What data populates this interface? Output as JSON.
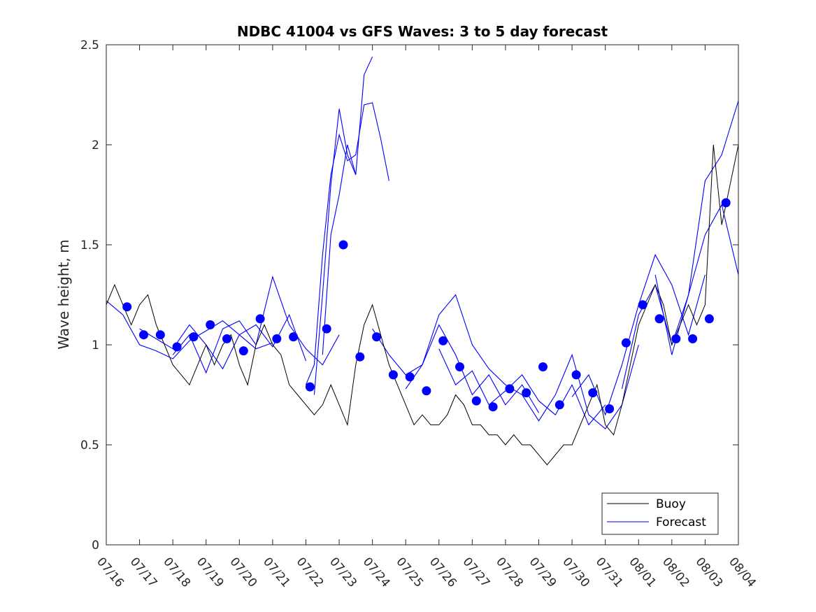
{
  "chart_data": {
    "type": "line",
    "title": "NDBC 41004 vs GFS Waves: 3 to 5 day forecast",
    "xlabel": "",
    "ylabel": "Wave height, m",
    "x_range": [
      "07/16",
      "08/04"
    ],
    "x_ticks": [
      "07/16",
      "07/17",
      "07/18",
      "07/19",
      "07/20",
      "07/21",
      "07/22",
      "07/23",
      "07/24",
      "07/25",
      "07/26",
      "07/27",
      "07/28",
      "07/29",
      "07/30",
      "07/31",
      "08/01",
      "08/02",
      "08/03",
      "08/04"
    ],
    "ylim": [
      0,
      2.5
    ],
    "y_ticks": [
      0,
      0.5,
      1,
      1.5,
      2,
      2.5
    ],
    "y_tick_labels": [
      "0",
      "0.5",
      "1",
      "1.5",
      "2",
      "2.5"
    ],
    "grid": false,
    "legend_position": "bottom-right",
    "colors": {
      "buoy": "#000000",
      "forecast": "#0000ff",
      "axes": "#262626"
    },
    "series": [
      {
        "name": "Buoy",
        "style": "line",
        "color": "#000000",
        "x": [
          "07/16",
          "07/16 06:00",
          "07/16 12:00",
          "07/16 18:00",
          "07/17",
          "07/17 06:00",
          "07/17 12:00",
          "07/17 18:00",
          "07/18",
          "07/18 06:00",
          "07/18 12:00",
          "07/18 18:00",
          "07/19",
          "07/19 06:00",
          "07/19 12:00",
          "07/19 18:00",
          "07/20",
          "07/20 06:00",
          "07/20 12:00",
          "07/20 18:00",
          "07/21",
          "07/21 06:00",
          "07/21 12:00",
          "07/21 18:00",
          "07/22",
          "07/22 06:00",
          "07/22 12:00",
          "07/22 18:00",
          "07/23",
          "07/23 06:00",
          "07/23 12:00",
          "07/23 18:00",
          "07/24",
          "07/24 06:00",
          "07/24 12:00",
          "07/24 18:00",
          "07/25",
          "07/25 06:00",
          "07/25 12:00",
          "07/25 18:00",
          "07/26",
          "07/26 06:00",
          "07/26 12:00",
          "07/26 18:00",
          "07/27",
          "07/27 06:00",
          "07/27 12:00",
          "07/27 18:00",
          "07/28",
          "07/28 06:00",
          "07/28 12:00",
          "07/28 18:00",
          "07/29",
          "07/29 06:00",
          "07/29 12:00",
          "07/29 18:00",
          "07/30",
          "07/30 06:00",
          "07/30 12:00",
          "07/30 18:00",
          "07/31",
          "07/31 06:00",
          "07/31 12:00",
          "07/31 18:00",
          "08/01",
          "08/01 06:00",
          "08/01 12:00",
          "08/01 18:00",
          "08/02",
          "08/02 06:00",
          "08/02 12:00",
          "08/02 18:00",
          "08/03",
          "08/03 06:00",
          "08/03 12:00",
          "08/03 18:00",
          "08/04"
        ],
        "values": [
          1.2,
          1.3,
          1.2,
          1.1,
          1.2,
          1.25,
          1.1,
          1.0,
          0.9,
          0.85,
          0.8,
          0.9,
          1.0,
          0.9,
          1.0,
          1.05,
          0.9,
          0.8,
          1.0,
          1.1,
          1.0,
          0.95,
          0.8,
          0.75,
          0.7,
          0.65,
          0.7,
          0.8,
          0.7,
          0.6,
          0.9,
          1.1,
          1.2,
          1.05,
          0.9,
          0.8,
          0.7,
          0.6,
          0.65,
          0.6,
          0.6,
          0.65,
          0.75,
          0.7,
          0.6,
          0.6,
          0.55,
          0.55,
          0.5,
          0.55,
          0.5,
          0.5,
          0.45,
          0.4,
          0.45,
          0.5,
          0.5,
          0.6,
          0.7,
          0.8,
          0.6,
          0.55,
          0.7,
          0.9,
          1.1,
          1.2,
          1.3,
          1.2,
          1.0,
          1.1,
          1.2,
          1.1,
          1.2,
          2.0,
          1.6,
          1.8,
          2.0
        ]
      },
      {
        "name": "Forecast",
        "style": "markers",
        "color": "#0000ff",
        "x": [
          "07/16 15:00",
          "07/17 03:00",
          "07/17 15:00",
          "07/18 03:00",
          "07/18 15:00",
          "07/19 03:00",
          "07/19 15:00",
          "07/20 03:00",
          "07/20 15:00",
          "07/21 03:00",
          "07/21 15:00",
          "07/22 03:00",
          "07/22 15:00",
          "07/23 03:00",
          "07/23 15:00",
          "07/24 03:00",
          "07/24 15:00",
          "07/25 03:00",
          "07/25 15:00",
          "07/26 03:00",
          "07/26 15:00",
          "07/27 03:00",
          "07/27 15:00",
          "07/28 03:00",
          "07/28 15:00",
          "07/29 03:00",
          "07/29 15:00",
          "07/30 03:00",
          "07/30 15:00",
          "07/31 03:00",
          "07/31 15:00",
          "08/01 03:00",
          "08/01 15:00",
          "08/02 03:00",
          "08/02 15:00",
          "08/03 03:00",
          "08/03 15:00"
        ],
        "values": [
          1.19,
          1.05,
          1.05,
          0.99,
          1.04,
          1.1,
          1.03,
          0.97,
          1.13,
          1.03,
          1.04,
          0.79,
          1.08,
          1.5,
          0.94,
          1.04,
          0.85,
          0.84,
          0.77,
          1.02,
          0.89,
          0.72,
          0.69,
          0.78,
          0.76,
          0.89,
          0.7,
          0.85,
          0.76,
          0.68,
          1.01,
          1.2,
          1.13,
          1.03,
          1.03,
          1.13,
          1.71
        ]
      }
    ],
    "forecast_runs": [
      {
        "x": [
          "07/16",
          "07/16 12:00",
          "07/17",
          "07/17 12:00",
          "07/18",
          "07/18 12:00",
          "07/19",
          "07/19 12:00",
          "07/20",
          "07/20 12:00",
          "07/21"
        ],
        "values": [
          1.22,
          1.15,
          1.0,
          0.97,
          0.93,
          1.02,
          1.07,
          1.12,
          1.05,
          0.98,
          1.01
        ]
      },
      {
        "x": [
          "07/17",
          "07/17 12:00",
          "07/18",
          "07/18 12:00",
          "07/19",
          "07/19 12:00",
          "07/20",
          "07/20 12:00",
          "07/21",
          "07/21 12:00",
          "07/22"
        ],
        "values": [
          1.08,
          1.03,
          0.98,
          1.1,
          1.0,
          0.88,
          1.05,
          1.1,
          0.99,
          1.15,
          0.92
        ]
      },
      {
        "x": [
          "07/18",
          "07/18 12:00",
          "07/19",
          "07/19 12:00",
          "07/20",
          "07/20 12:00",
          "07/21",
          "07/21 12:00",
          "07/22",
          "07/22 12:00",
          "07/23"
        ],
        "values": [
          0.95,
          1.05,
          0.86,
          1.08,
          1.12,
          1.0,
          1.34,
          1.1,
          0.98,
          0.9,
          1.05
        ]
      },
      {
        "x": [
          "07/22",
          "07/22 06:00",
          "07/22 12:00",
          "07/22 18:00",
          "07/23",
          "07/23 06:00",
          "07/23 12:00",
          "07/23 18:00",
          "07/24",
          "07/24 06:00",
          "07/24 12:00"
        ],
        "values": [
          0.8,
          0.9,
          1.45,
          1.85,
          2.05,
          1.92,
          1.95,
          2.2,
          2.21,
          2.03,
          1.82
        ]
      },
      {
        "x": [
          "07/22 06:00",
          "07/22 12:00",
          "07/22 18:00",
          "07/23",
          "07/23 06:00",
          "07/23 12:00",
          "07/23 18:00",
          "07/24"
        ],
        "values": [
          0.75,
          1.25,
          1.8,
          2.18,
          1.95,
          1.85,
          2.35,
          2.44
        ]
      },
      {
        "x": [
          "07/22 12:00",
          "07/22 18:00",
          "07/23",
          "07/23 06:00",
          "07/23 12:00"
        ],
        "values": [
          0.95,
          1.55,
          1.75,
          2.0,
          1.85
        ]
      },
      {
        "x": [
          "07/24",
          "07/24 12:00",
          "07/25",
          "07/25 12:00",
          "07/26",
          "07/26 12:00",
          "07/27",
          "07/27 12:00",
          "07/28"
        ],
        "values": [
          1.08,
          0.95,
          0.85,
          0.9,
          1.15,
          1.25,
          1.0,
          0.88,
          0.8
        ]
      },
      {
        "x": [
          "07/25",
          "07/25 12:00",
          "07/26",
          "07/26 12:00",
          "07/27",
          "07/27 12:00",
          "07/28",
          "07/28 12:00",
          "07/29"
        ],
        "values": [
          0.78,
          0.9,
          1.1,
          0.95,
          0.75,
          0.85,
          0.7,
          0.8,
          0.66
        ]
      },
      {
        "x": [
          "07/26",
          "07/26 12:00",
          "07/27",
          "07/27 12:00",
          "07/28",
          "07/28 12:00",
          "07/29",
          "07/29 12:00",
          "07/30",
          "07/30 12:00",
          "07/31"
        ],
        "values": [
          0.98,
          0.8,
          0.87,
          0.7,
          0.77,
          0.85,
          0.72,
          0.65,
          0.8,
          0.6,
          0.7
        ]
      },
      {
        "x": [
          "07/28",
          "07/28 12:00",
          "07/29",
          "07/29 12:00",
          "07/30",
          "07/30 12:00",
          "07/31",
          "07/31 12:00",
          "08/01"
        ],
        "values": [
          0.8,
          0.75,
          0.62,
          0.75,
          0.95,
          0.65,
          0.58,
          0.7,
          1.0
        ]
      },
      {
        "x": [
          "07/30",
          "07/30 12:00",
          "07/31",
          "07/31 12:00",
          "08/01",
          "08/01 12:00",
          "08/02",
          "08/02 12:00",
          "08/03"
        ],
        "values": [
          0.74,
          0.85,
          0.65,
          0.9,
          1.2,
          1.45,
          1.3,
          1.05,
          1.35
        ]
      },
      {
        "x": [
          "07/31 12:00",
          "08/01",
          "08/01 12:00",
          "08/02",
          "08/02 12:00",
          "08/03",
          "08/03 12:00",
          "08/04"
        ],
        "values": [
          0.78,
          1.15,
          1.3,
          1.0,
          1.25,
          1.82,
          1.95,
          2.22
        ]
      },
      {
        "x": [
          "08/01 12:00",
          "08/02",
          "08/02 12:00",
          "08/03",
          "08/03 12:00",
          "08/04"
        ],
        "values": [
          1.35,
          0.95,
          1.25,
          1.55,
          1.7,
          1.35
        ]
      }
    ]
  },
  "legend": {
    "entries": [
      "Buoy",
      "Forecast"
    ]
  }
}
